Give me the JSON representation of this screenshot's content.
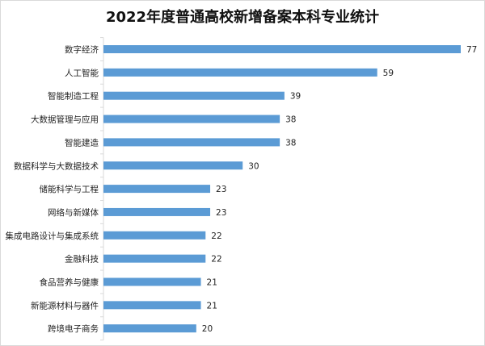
{
  "chart_data": {
    "type": "bar",
    "orientation": "horizontal",
    "title": "2022年度普通高校新增备案本科专业统计",
    "categories": [
      "数字经济",
      "人工智能",
      "智能制造工程",
      "大数据管理与应用",
      "智能建造",
      "数据科学与大数据技术",
      "储能科学与工程",
      "网络与新媒体",
      "集成电路设计与集成系统",
      "金融科技",
      "食品营养与健康",
      "新能源材料与器件",
      "跨境电子商务"
    ],
    "values": [
      77,
      59,
      39,
      38,
      38,
      30,
      23,
      23,
      22,
      22,
      21,
      21,
      20
    ],
    "xlim": [
      0,
      77
    ],
    "grid": false,
    "legend": "none",
    "bar_color": "#5b9bd5",
    "data_labels": true
  }
}
